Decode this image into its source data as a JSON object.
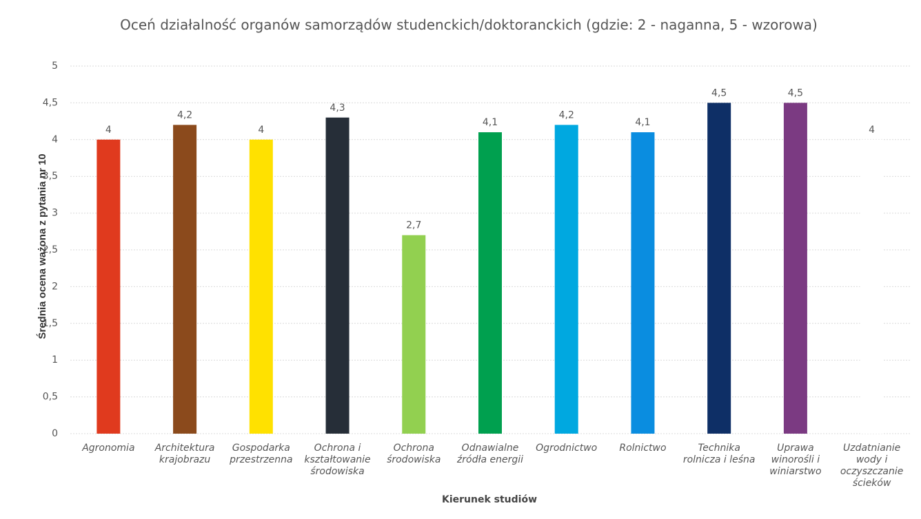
{
  "chart_data": {
    "type": "bar",
    "title": "Oceń działalność organów samorządów studenckich/doktoranckich (gdzie: 2 - naganna, 5 - wzorowa)",
    "xlabel": "Kierunek studiów",
    "ylabel": "Średnia ocena ważona z pytania nr 10",
    "categories": [
      "Agronomia",
      "Architektura\nkrajobrazu",
      "Gospodarka\nprzestrzenna",
      "Ochrona i\nkształtowanie\nśrodowiska",
      "Ochrona\nśrodowiska",
      "Odnawialne\nźródła energii",
      "Ogrodnictwo",
      "Rolnictwo",
      "Technika\nrolnicza i leśna",
      "Uprawa\nwinorośli i\nwiniarstwo",
      "Uzdatnianie\nwody i\noczyszczanie\nścieków"
    ],
    "values": [
      4,
      4.2,
      4,
      4.3,
      2.7,
      4.1,
      4.2,
      4.1,
      4.5,
      4.5,
      4
    ],
    "value_labels": [
      "4",
      "4,2",
      "4",
      "4,3",
      "2,7",
      "4,1",
      "4,2",
      "4,1",
      "4,5",
      "4,5",
      "4"
    ],
    "colors": [
      "#e03a1e",
      "#8b4a1c",
      "#ffe100",
      "#262e38",
      "#92d050",
      "#00a04f",
      "#00a8e0",
      "#0a8de0",
      "#0e2f66",
      "#7b3a82",
      "#ffffff"
    ],
    "ylim": [
      0,
      5
    ],
    "yticks": [
      0,
      {
        "value": 0.5,
        "label": "0,5"
      },
      1,
      {
        "value": 1.5,
        "label": "1,5"
      },
      2,
      {
        "value": 2.5,
        "label": "2,5"
      },
      3,
      {
        "value": 3.5,
        "label": "3,5"
      },
      4,
      {
        "value": 4.5,
        "label": "4,5"
      },
      5
    ],
    "grid": true
  }
}
